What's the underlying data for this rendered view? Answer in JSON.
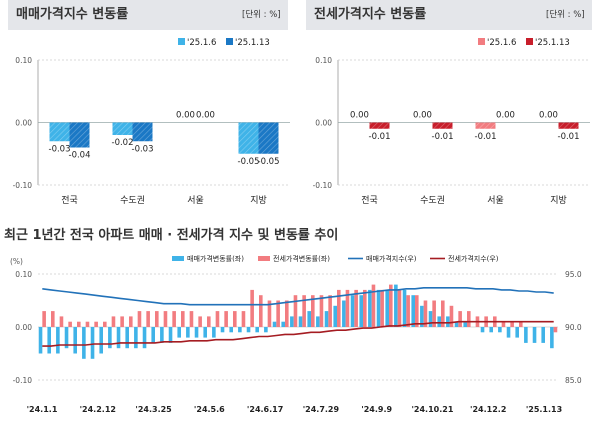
{
  "left_panel": {
    "title": "매매가격지수 변동률",
    "unit": "[단위 : %]"
  },
  "right_panel": {
    "title": "전세가격지수 변동률",
    "unit": "[단위 : %]"
  },
  "bottom_panel": {
    "title": "최근 1년간 전국 아파트 매매 · 전세가격 지수 및 변동률 추이"
  },
  "colors": {
    "sale_light": "#3fb3e8",
    "sale_dark": "#1b78c5",
    "lease_light": "#f27c80",
    "lease_dark": "#c81e2b",
    "sale_index_line": "#2272b9",
    "lease_index_line": "#a51c22"
  },
  "chart_data": [
    {
      "type": "bar",
      "categories": [
        "전국",
        "수도권",
        "서울",
        "지방"
      ],
      "series": [
        {
          "name": "'25.1.6",
          "values": [
            -0.03,
            -0.02,
            0.0,
            -0.05
          ]
        },
        {
          "name": "'25.1.13",
          "values": [
            -0.04,
            -0.03,
            0.0,
            -0.05
          ]
        }
      ],
      "ylim": [
        -0.1,
        0.1
      ],
      "yticks": [
        "0.10",
        "0.00",
        "-0.10"
      ],
      "data_labels": [
        [
          "-0.03",
          "-0.04"
        ],
        [
          "-0.02",
          "-0.03"
        ],
        [
          "0.00",
          "0.00"
        ],
        [
          "-0.05",
          "-0.05"
        ]
      ]
    },
    {
      "type": "bar",
      "categories": [
        "전국",
        "수도권",
        "서울",
        "지방"
      ],
      "series": [
        {
          "name": "'25.1.6",
          "values": [
            0.0,
            0.0,
            -0.01,
            0.0
          ]
        },
        {
          "name": "'25.1.13",
          "values": [
            -0.01,
            -0.01,
            0.0,
            -0.01
          ]
        }
      ],
      "ylim": [
        -0.1,
        0.1
      ],
      "yticks": [
        "0.10",
        "0.00",
        "-0.10"
      ],
      "data_labels": [
        [
          "0.00",
          "-0.01"
        ],
        [
          "0.00",
          "-0.01"
        ],
        [
          "-0.01",
          "0.00"
        ],
        [
          "0.00",
          "-0.01"
        ]
      ]
    },
    {
      "type": "bar+line",
      "left_axis_label": "(%)",
      "left_ylim": [
        -0.1,
        0.1
      ],
      "left_yticks": [
        "0.10",
        "0.00",
        "-0.10"
      ],
      "right_ylim": [
        85.0,
        95.0
      ],
      "right_yticks": [
        "95.0",
        "90.0",
        "85.0"
      ],
      "xtick_labels": [
        "'24.1.1",
        "'24.2.12",
        "'24.3.25",
        "'24.5.6",
        "'24.6.17",
        "'24.7.29",
        "'24.9.9",
        "'24.10.21",
        "'24.12.2",
        "'25.1.13"
      ],
      "legend": [
        "매매가격변동률(좌)",
        "전세가격변동률(좌)",
        "매매가격지수(우)",
        "전세가격지수(우)"
      ],
      "sale_change": [
        -0.05,
        -0.05,
        -0.05,
        -0.04,
        -0.05,
        -0.06,
        -0.06,
        -0.05,
        -0.04,
        -0.04,
        -0.04,
        -0.04,
        -0.04,
        -0.03,
        -0.03,
        -0.03,
        -0.02,
        -0.02,
        -0.02,
        -0.02,
        -0.02,
        -0.01,
        -0.01,
        -0.01,
        -0.01,
        -0.01,
        -0.01,
        0.01,
        0.01,
        0.02,
        0.02,
        0.03,
        0.02,
        0.03,
        0.04,
        0.05,
        0.06,
        0.06,
        0.07,
        0.07,
        0.07,
        0.08,
        0.07,
        0.06,
        0.04,
        0.03,
        0.02,
        0.02,
        0.01,
        0.01,
        0.0,
        -0.01,
        -0.01,
        -0.01,
        -0.02,
        -0.02,
        -0.03,
        -0.03,
        -0.03,
        -0.04
      ],
      "lease_change": [
        0.03,
        0.03,
        0.02,
        0.01,
        0.01,
        0.01,
        0.01,
        0.01,
        0.02,
        0.02,
        0.02,
        0.03,
        0.03,
        0.03,
        0.03,
        0.03,
        0.03,
        0.03,
        0.02,
        0.02,
        0.03,
        0.03,
        0.03,
        0.03,
        0.07,
        0.06,
        0.05,
        0.05,
        0.05,
        0.06,
        0.06,
        0.06,
        0.06,
        0.06,
        0.07,
        0.07,
        0.07,
        0.07,
        0.08,
        0.07,
        0.08,
        0.07,
        0.06,
        0.06,
        0.05,
        0.05,
        0.05,
        0.04,
        0.03,
        0.03,
        0.02,
        0.02,
        0.02,
        0.01,
        0.01,
        0.01,
        0.0,
        0.0,
        0.0,
        -0.01
      ],
      "sale_index": [
        93.6,
        93.5,
        93.4,
        93.3,
        93.2,
        93.1,
        93.0,
        92.9,
        92.8,
        92.7,
        92.6,
        92.5,
        92.4,
        92.3,
        92.2,
        92.2,
        92.2,
        92.1,
        92.1,
        92.1,
        92.1,
        92.1,
        92.1,
        92.1,
        92.1,
        92.1,
        92.1,
        92.2,
        92.3,
        92.4,
        92.5,
        92.6,
        92.7,
        92.8,
        92.9,
        93.0,
        93.1,
        93.2,
        93.3,
        93.4,
        93.5,
        93.5,
        93.6,
        93.6,
        93.7,
        93.7,
        93.7,
        93.7,
        93.7,
        93.7,
        93.6,
        93.6,
        93.6,
        93.5,
        93.5,
        93.4,
        93.4,
        93.3,
        93.3,
        93.2
      ],
      "lease_index": [
        88.2,
        88.2,
        88.3,
        88.3,
        88.3,
        88.3,
        88.4,
        88.4,
        88.4,
        88.5,
        88.5,
        88.5,
        88.5,
        88.5,
        88.6,
        88.6,
        88.6,
        88.7,
        88.7,
        88.7,
        88.8,
        88.8,
        88.8,
        88.9,
        89.0,
        89.1,
        89.1,
        89.2,
        89.3,
        89.3,
        89.4,
        89.5,
        89.5,
        89.6,
        89.7,
        89.7,
        89.8,
        89.9,
        89.9,
        90.0,
        90.1,
        90.1,
        90.2,
        90.3,
        90.3,
        90.4,
        90.4,
        90.4,
        90.5,
        90.5,
        90.5,
        90.5,
        90.5,
        90.5,
        90.5,
        90.5,
        90.5,
        90.5,
        90.5,
        90.5
      ]
    }
  ]
}
